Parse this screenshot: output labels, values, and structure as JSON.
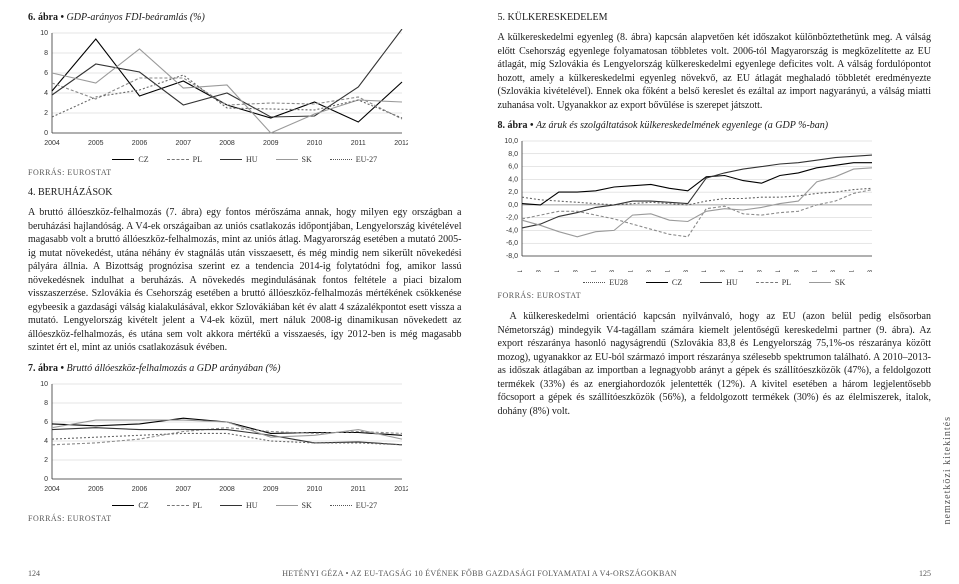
{
  "left": {
    "fig6": {
      "title_prefix": "6. ábra",
      "title_sep": " • ",
      "title_em": "GDP-arányos FDI-beáramlás (%)",
      "type": "line",
      "x": [
        2004,
        2005,
        2006,
        2007,
        2008,
        2009,
        2010,
        2011,
        2012
      ],
      "ylim": [
        0,
        10
      ],
      "ytick_step": 2,
      "series": {
        "CZ": {
          "label": "CZ",
          "values": [
            4.2,
            9.4,
            3.7,
            5.2,
            2.8,
            1.5,
            3.1,
            1.1,
            5.1
          ],
          "stroke": "#000000",
          "dash": ""
        },
        "PL": {
          "label": "PL",
          "values": [
            5.0,
            3.4,
            5.5,
            5.5,
            2.8,
            3.0,
            2.9,
            3.6,
            1.4
          ],
          "stroke": "#8a8a8a",
          "dash": "3 2"
        },
        "HU": {
          "label": "HU",
          "values": [
            3.8,
            6.9,
            6.1,
            2.8,
            4.0,
            1.6,
            1.7,
            4.6,
            10.4
          ],
          "stroke": "#333333",
          "dash": ""
        },
        "SK": {
          "label": "SK",
          "values": [
            6.0,
            5.0,
            8.4,
            4.5,
            4.8,
            0.0,
            1.9,
            3.3,
            3.1
          ],
          "stroke": "#9a9a9a",
          "dash": ""
        },
        "EU27": {
          "label": "EU-27",
          "values": [
            1.6,
            3.6,
            4.3,
            5.8,
            2.5,
            2.4,
            2.3,
            3.3,
            1.5
          ],
          "stroke": "#666666",
          "dash": "2 2"
        }
      },
      "colors": {
        "bg": "#ffffff",
        "grid": "#cccccc",
        "axis": "#333333"
      },
      "fontsize_tick": 7
    },
    "source": "FORRÁS: EUROSTAT",
    "section4": "4. BERUHÁZÁSOK",
    "para1": "A bruttó állóeszköz-felhalmozás (7. ábra) egy fontos mérőszáma annak, hogy milyen egy országban a beruházási hajlandóság. A V4-ek országaiban az uniós csatlakozás időpontjában, Lengyelország kivételével magasabb volt a bruttó állóeszköz-felhalmozás, mint az uniós átlag. Magyarország esetében a mutató 2005-ig mutat növekedést, utána néhány év stagnálás után visszaesett, és még mindig nem sikerült növekedési pályára állnia. A Bizottság prognózisa szerint ez a tendencia 2014-ig folytatódni fog, amikor lassú növekedésnek indulhat a beruházás. A növekedés megindulásának fontos feltétele a piaci bizalom visszaszerzése. Szlovákia és Csehország esetében a bruttó állóeszköz-felhalmozás mértékének csökkenése egybeesik a gazdasági válság kialakulásával, ekkor Szlovákiában két év alatt 4 százalékpontot esett vissza a mutató. Lengyelország kivételt jelent a V4-ek közül, mert náluk 2008-ig dinamikusan növekedett az állóeszköz-felhalmozás, és utána sem volt akkora mértékű a visszaesés, így 2012-ben is még magasabb szintet ért el, mint az uniós csatlakozásuk évében.",
    "fig7": {
      "title_prefix": "7. ábra",
      "title_sep": " • ",
      "title_em": "Bruttó állóeszköz-felhalmozás a GDP arányában (%)",
      "type": "line",
      "x": [
        2004,
        2005,
        2006,
        2007,
        2008,
        2009,
        2010,
        2011,
        2012
      ],
      "ylim": [
        0,
        10
      ],
      "ytick_step": 2,
      "series": {
        "CZ": {
          "label": "CZ",
          "values": [
            5.8,
            5.6,
            5.8,
            6.4,
            6.0,
            4.8,
            4.9,
            4.9,
            4.6
          ],
          "stroke": "#000000",
          "dash": ""
        },
        "PL": {
          "label": "PL",
          "values": [
            3.6,
            3.8,
            4.2,
            5.0,
            5.4,
            5.0,
            4.8,
            5.0,
            4.8
          ],
          "stroke": "#8a8a8a",
          "dash": "3 2"
        },
        "HU": {
          "label": "HU",
          "values": [
            5.2,
            5.4,
            5.2,
            5.2,
            5.2,
            4.6,
            3.8,
            3.9,
            3.6
          ],
          "stroke": "#333333",
          "dash": ""
        },
        "SK": {
          "label": "SK",
          "values": [
            5.4,
            6.2,
            6.2,
            6.2,
            6.0,
            4.4,
            4.6,
            5.2,
            4.2
          ],
          "stroke": "#9a9a9a",
          "dash": ""
        },
        "EU27": {
          "label": "EU-27",
          "values": [
            4.2,
            4.4,
            4.6,
            4.8,
            4.8,
            4.0,
            3.8,
            3.8,
            3.6
          ],
          "stroke": "#666666",
          "dash": "2 2"
        }
      },
      "colors": {
        "bg": "#ffffff",
        "grid": "#cccccc",
        "axis": "#333333"
      }
    }
  },
  "right": {
    "section5": "5. KÜLKERESKEDELEM",
    "para1": "A külkereskedelmi egyenleg (8. ábra) kapcsán alapvetően két időszakot különböztethetünk meg. A válság előtt Csehország egyenlege folyamatosan többletes volt. 2006-tól Magyarország is megközelítette az EU átlagát, míg Szlovákia és Lengyelország külkereskedelmi egyenlege deficites volt. A válság fordulópontot hozott, amely a külkereskedelmi egyenleg növekvő, az EU átlagát meghaladó többletét eredményezte (Szlovákia kivételével). Ennek oka főként a belső kereslet és ezáltal az import nagyarányú, a válság miatti zuhanása volt. Ugyanakkor az export bővülése is szerepet játszott.",
    "fig8": {
      "title_prefix": "8. ábra",
      "title_sep": " • ",
      "title_em": "Az áruk és szolgáltatások külkereskedelmének egyenlege (a GDP %-ban)",
      "type": "line",
      "x_labels": [
        "2004Q1",
        "2004Q3",
        "2005Q1",
        "2005Q3",
        "2006Q1",
        "2006Q3",
        "2007Q1",
        "2007Q3",
        "2008Q1",
        "2008Q3",
        "2009Q1",
        "2009Q3",
        "2010Q1",
        "2010Q3",
        "2011Q1",
        "2011Q3",
        "2012Q1",
        "2012Q3",
        "2013Q1",
        "2013Q3"
      ],
      "ylim": [
        -8,
        10
      ],
      "yticks": [
        -8,
        -6,
        -4,
        -2,
        0,
        2,
        4,
        6,
        8,
        10
      ],
      "series": {
        "EU28": {
          "label": "EU28",
          "values": [
            1.2,
            0.8,
            0.6,
            0.4,
            0.2,
            0.0,
            0.2,
            0.4,
            0.2,
            0.0,
            0.6,
            1.0,
            1.0,
            1.2,
            1.2,
            1.4,
            1.8,
            2.0,
            2.4,
            2.6
          ],
          "stroke": "#666666",
          "dash": "2 2"
        },
        "CZ": {
          "label": "CZ",
          "values": [
            0.2,
            0.0,
            2.0,
            2.0,
            2.2,
            2.8,
            3.0,
            3.2,
            2.6,
            2.2,
            4.4,
            4.6,
            3.8,
            3.4,
            4.6,
            5.0,
            5.8,
            6.2,
            6.6,
            6.6
          ],
          "stroke": "#000000",
          "dash": ""
        },
        "HU": {
          "label": "HU",
          "values": [
            -3.6,
            -3.0,
            -1.8,
            -1.2,
            -0.4,
            0.0,
            0.6,
            0.6,
            0.4,
            0.2,
            4.2,
            5.0,
            5.6,
            6.0,
            6.4,
            6.6,
            7.0,
            7.4,
            7.6,
            7.8
          ],
          "stroke": "#333333",
          "dash": ""
        },
        "PL": {
          "label": "PL",
          "values": [
            -2.2,
            -1.6,
            -1.0,
            -1.0,
            -1.6,
            -2.2,
            -3.0,
            -3.8,
            -4.6,
            -5.0,
            -0.6,
            -0.2,
            -1.4,
            -1.6,
            -1.2,
            -1.0,
            0.0,
            0.6,
            1.8,
            2.4
          ],
          "stroke": "#8a8a8a",
          "dash": "3 2"
        },
        "SK": {
          "label": "SK",
          "values": [
            -2.4,
            -3.2,
            -4.2,
            -5.0,
            -4.2,
            -4.0,
            -1.6,
            -1.4,
            -2.4,
            -2.6,
            -1.0,
            -0.6,
            -0.8,
            -0.4,
            0.2,
            0.6,
            3.6,
            4.4,
            5.6,
            5.8
          ],
          "stroke": "#9a9a9a",
          "dash": ""
        }
      },
      "colors": {
        "bg": "#ffffff",
        "grid": "#cccccc",
        "axis": "#333333"
      }
    },
    "source": "FORRÁS: EUROSTAT",
    "para2": "A külkereskedelmi orientáció kapcsán nyilvánvaló, hogy az EU (azon belül pedig elsősorban Németország) mindegyik V4-tagállam számára kiemelt jelentőségű kereskedelmi partner (9. ábra). Az export részaránya hasonló nagyságrendű (Szlovákia 83,8 és Lengyelország 75,1%-os részaránya között mozog), ugyanakkor az EU-ból származó import részaránya szélesebb spektrumon található. A 2010–2013-as időszak átlagában az importban a legnagyobb arányt a gépek és szállítóeszközök (47%), a feldolgozott termékek (33%) és az energiahordozók jelentették (12%). A kivitel esetében a három legjelentősebb főcsoport a gépek és szállítóeszközök (56%), a feldolgozott termékek (30%) és az élelmiszerek, italok, dohány (8%) volt.",
    "side_label": "nemzetközi kitekintés"
  },
  "footer": {
    "page_left": "124",
    "author": "HETÉNYI GÉZA • AZ EU-TAGSÁG 10 ÉVÉNEK FŐBB GAZDASÁGI FOLYAMATAI A V4-ORSZÁGOKBAN",
    "page_right": "125"
  }
}
